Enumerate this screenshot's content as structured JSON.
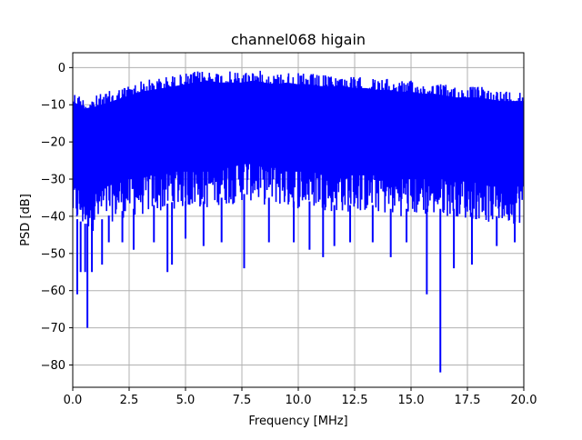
{
  "chart_data": {
    "type": "line",
    "title": "channel068 higain",
    "xlabel": "Frequency [MHz]",
    "ylabel": "PSD [dB]",
    "xlim": [
      0,
      20
    ],
    "ylim": [
      -86,
      4
    ],
    "grid": true,
    "xticks": [
      0,
      2.5,
      5,
      7.5,
      10,
      12.5,
      15,
      17.5,
      20
    ],
    "xtick_labels": [
      "0.0",
      "2.5",
      "5.0",
      "7.5",
      "10.0",
      "12.5",
      "15.0",
      "17.5",
      "20.0"
    ],
    "yticks": [
      0,
      -10,
      -20,
      -30,
      -40,
      -50,
      -60,
      -70,
      -80
    ],
    "ytick_labels": [
      "0",
      "−10",
      "−20",
      "−30",
      "−40",
      "−50",
      "−60",
      "−70",
      "−80"
    ],
    "series": [
      {
        "color": "#0000ff",
        "upper_envelope": {
          "x": [
            0,
            0.5,
            1,
            1.5,
            2,
            2.5,
            3,
            3.5,
            4,
            4.5,
            5,
            5.5,
            6,
            6.5,
            7,
            7.5,
            8,
            8.5,
            9,
            9.5,
            10,
            10.5,
            11,
            11.5,
            12,
            12.5,
            13,
            13.5,
            14,
            14.5,
            15,
            15.5,
            16,
            16.5,
            17,
            17.5,
            18,
            18.5,
            19,
            19.5,
            20
          ],
          "y": [
            -6,
            -8,
            -7.5,
            -6.5,
            -5.5,
            -4.5,
            -3.5,
            -3,
            -2.5,
            -2,
            -1.5,
            -1,
            -0.5,
            -1,
            -1,
            -1,
            -0.5,
            -1,
            -1.5,
            -1,
            -1.5,
            -1.5,
            -2,
            -2,
            -2,
            -2.5,
            -2.5,
            -3,
            -3,
            -3.5,
            -3.5,
            -4,
            -4,
            -4.5,
            -5,
            -5,
            -5,
            -5.5,
            -6,
            -6,
            -6
          ]
        },
        "lower_envelope": {
          "x": [
            0,
            0.5,
            1,
            1.5,
            2,
            2.5,
            3,
            3.5,
            4,
            4.5,
            5,
            5.5,
            6,
            6.5,
            7,
            7.5,
            8,
            8.5,
            9,
            9.5,
            10,
            10.5,
            11,
            11.5,
            12,
            12.5,
            13,
            13.5,
            14,
            14.5,
            15,
            15.5,
            16,
            16.5,
            17,
            17.5,
            18,
            18.5,
            19,
            19.5,
            20
          ],
          "y": [
            -42,
            -44,
            -44,
            -42,
            -41,
            -40,
            -40,
            -39,
            -39,
            -38,
            -38,
            -38,
            -38,
            -37,
            -37,
            -36,
            -36,
            -37,
            -37,
            -38,
            -38,
            -38,
            -38,
            -39,
            -39,
            -39,
            -39,
            -39,
            -40,
            -40,
            -40,
            -40,
            -40,
            -40,
            -40,
            -41,
            -41,
            -42,
            -42,
            -42,
            -42
          ]
        },
        "dips": [
          {
            "x": 0.2,
            "y": -61
          },
          {
            "x": 0.35,
            "y": -55
          },
          {
            "x": 0.55,
            "y": -55
          },
          {
            "x": 0.65,
            "y": -70
          },
          {
            "x": 0.85,
            "y": -55
          },
          {
            "x": 1.3,
            "y": -53
          },
          {
            "x": 1.6,
            "y": -47
          },
          {
            "x": 2.2,
            "y": -47
          },
          {
            "x": 2.7,
            "y": -49
          },
          {
            "x": 3.6,
            "y": -47
          },
          {
            "x": 4.2,
            "y": -55
          },
          {
            "x": 4.4,
            "y": -53
          },
          {
            "x": 5.0,
            "y": -46
          },
          {
            "x": 5.8,
            "y": -48
          },
          {
            "x": 6.6,
            "y": -47
          },
          {
            "x": 7.6,
            "y": -54
          },
          {
            "x": 8.7,
            "y": -47
          },
          {
            "x": 9.8,
            "y": -47
          },
          {
            "x": 10.5,
            "y": -49
          },
          {
            "x": 11.1,
            "y": -51
          },
          {
            "x": 11.6,
            "y": -48
          },
          {
            "x": 12.3,
            "y": -47
          },
          {
            "x": 13.3,
            "y": -47
          },
          {
            "x": 14.1,
            "y": -51
          },
          {
            "x": 14.8,
            "y": -47
          },
          {
            "x": 15.7,
            "y": -61
          },
          {
            "x": 16.3,
            "y": -82
          },
          {
            "x": 16.9,
            "y": -54
          },
          {
            "x": 17.7,
            "y": -53
          },
          {
            "x": 18.8,
            "y": -48
          },
          {
            "x": 19.6,
            "y": -47
          }
        ]
      }
    ]
  }
}
